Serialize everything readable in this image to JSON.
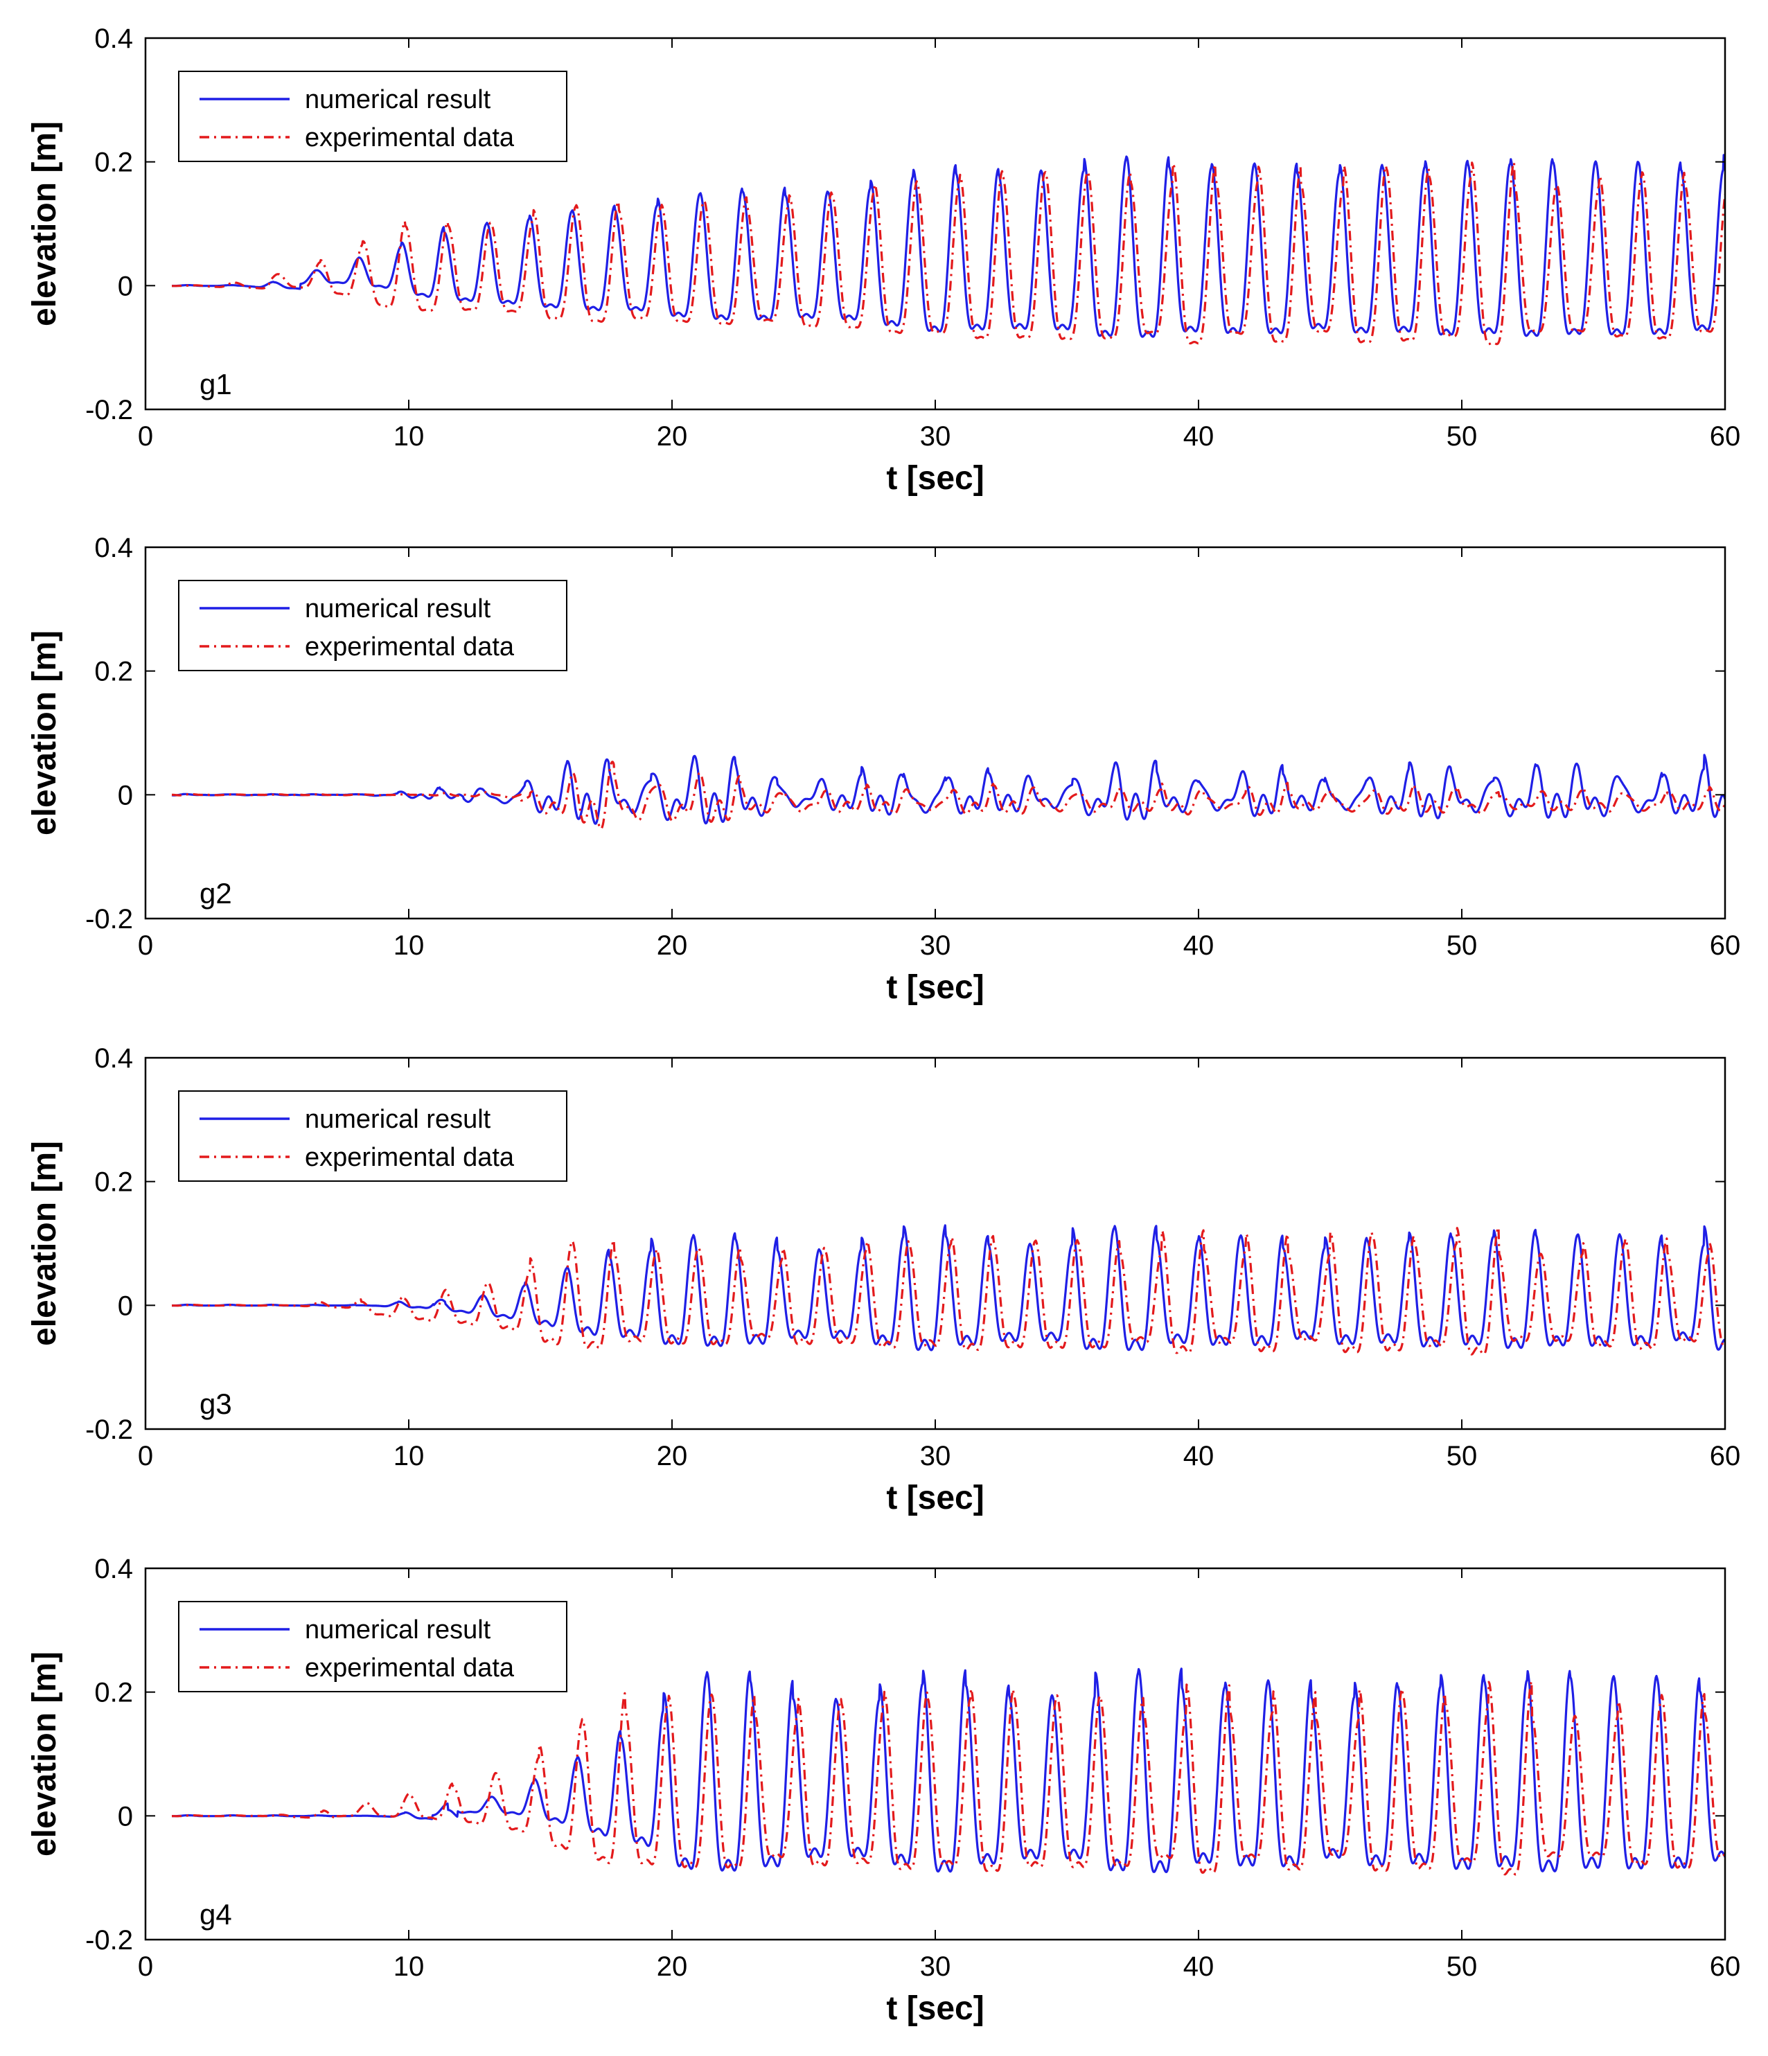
{
  "chart_data": [
    {
      "type": "line",
      "panel_label": "g1",
      "xlabel": "t [sec]",
      "ylabel": "elevation [m]",
      "xlim": [
        0,
        60
      ],
      "ylim": [
        -0.2,
        0.4
      ],
      "xticks": [
        0,
        10,
        20,
        30,
        40,
        50,
        60
      ],
      "yticks": [
        -0.2,
        0,
        0.2,
        0.4
      ],
      "xtick_labels": [
        "0",
        "10",
        "20",
        "30",
        "40",
        "50",
        "60"
      ],
      "ytick_labels": [
        "-0.2",
        "0",
        "0.2",
        "0.4"
      ],
      "legend_position": "top-left",
      "series": [
        {
          "name": "numerical result",
          "color": "#1f1fe6",
          "style": "solid",
          "data_start": 1.0,
          "data_end": 60.0,
          "onset": 3.5,
          "ramp": 1.0,
          "t1": 12.0,
          "amp1": 0.085,
          "t2": 34.0,
          "amp2": 0.18,
          "amp3": 0.18,
          "period": 1.62,
          "phase": 0.0,
          "offset": 0.035,
          "skew": 0.35,
          "noise": 0.15
        },
        {
          "name": "experimental data",
          "color": "#e31a1c",
          "style": "dashdot",
          "data_start": 1.0,
          "data_end": 60.0,
          "onset": 1.5,
          "ramp": 2.0,
          "t1": 10.0,
          "amp1": 0.09,
          "t2": 34.0,
          "amp2": 0.17,
          "amp3": 0.17,
          "period": 1.62,
          "phase": 0.15,
          "offset": 0.02,
          "skew": 0.3,
          "noise": 0.2
        }
      ]
    },
    {
      "type": "line",
      "panel_label": "g2",
      "xlabel": "t [sec]",
      "ylabel": "elevation [m]",
      "xlim": [
        0,
        60
      ],
      "ylim": [
        -0.2,
        0.4
      ],
      "xticks": [
        0,
        10,
        20,
        30,
        40,
        50,
        60
      ],
      "yticks": [
        -0.2,
        0,
        0.2,
        0.4
      ],
      "xtick_labels": [
        "0",
        "10",
        "20",
        "30",
        "40",
        "50",
        "60"
      ],
      "ytick_labels": [
        "-0.2",
        "0",
        "0.2",
        "0.4"
      ],
      "legend_position": "top-left",
      "series": [
        {
          "name": "numerical result",
          "color": "#1f1fe6",
          "style": "solid",
          "data_start": 1.0,
          "data_end": 60.0,
          "onset": 7.0,
          "ramp": 2.0,
          "t1": 17.0,
          "amp1": 0.05,
          "t2": 25.0,
          "amp2": 0.035,
          "amp3": 0.04,
          "period": 1.6,
          "phase": 0.0,
          "offset": -0.005,
          "skew": 0.6,
          "noise": 0.5
        },
        {
          "name": "experimental data",
          "color": "#e31a1c",
          "style": "dashdot",
          "data_start": 1.0,
          "data_end": 60.0,
          "onset": 10.0,
          "ramp": 2.0,
          "t1": 18.0,
          "amp1": 0.05,
          "t2": 26.0,
          "amp2": 0.02,
          "amp3": 0.02,
          "period": 1.6,
          "phase": 0.2,
          "offset": -0.025,
          "skew": 0.6,
          "noise": 0.5
        }
      ]
    },
    {
      "type": "line",
      "panel_label": "g3",
      "xlabel": "t [sec]",
      "ylabel": "elevation [m]",
      "xlim": [
        0,
        60
      ],
      "ylim": [
        -0.2,
        0.4
      ],
      "xticks": [
        0,
        10,
        20,
        30,
        40,
        50,
        60
      ],
      "yticks": [
        -0.2,
        0,
        0.2,
        0.4
      ],
      "xtick_labels": [
        "0",
        "10",
        "20",
        "30",
        "40",
        "50",
        "60"
      ],
      "ytick_labels": [
        "-0.2",
        "0",
        "0.2",
        "0.4"
      ],
      "legend_position": "top-left",
      "series": [
        {
          "name": "numerical result",
          "color": "#1f1fe6",
          "style": "solid",
          "data_start": 1.0,
          "data_end": 60.0,
          "onset": 8.0,
          "ramp": 2.0,
          "t1": 18.0,
          "amp1": 0.1,
          "t2": 31.0,
          "amp2": 0.12,
          "amp3": 0.115,
          "period": 1.6,
          "phase": 0.0,
          "offset": -0.01,
          "skew": 0.45,
          "noise": 0.3
        },
        {
          "name": "experimental data",
          "color": "#e31a1c",
          "style": "dashdot",
          "data_start": 1.0,
          "data_end": 60.0,
          "onset": 5.0,
          "ramp": 2.0,
          "t1": 16.0,
          "amp1": 0.1,
          "t2": 31.0,
          "amp2": 0.11,
          "amp3": 0.115,
          "period": 1.6,
          "phase": 0.2,
          "offset": -0.02,
          "skew": 0.4,
          "noise": 0.35
        }
      ]
    },
    {
      "type": "line",
      "panel_label": "g4",
      "xlabel": "t [sec]",
      "ylabel": "elevation [m]",
      "xlim": [
        0,
        60
      ],
      "ylim": [
        -0.2,
        0.4
      ],
      "xticks": [
        0,
        10,
        20,
        30,
        40,
        50,
        60
      ],
      "yticks": [
        -0.2,
        0,
        0.2,
        0.4
      ],
      "xtick_labels": [
        "0",
        "10",
        "20",
        "30",
        "40",
        "50",
        "60"
      ],
      "ytick_labels": [
        "-0.2",
        "0",
        "0.2",
        "0.4"
      ],
      "legend_position": "top-left",
      "series": [
        {
          "name": "numerical result",
          "color": "#1f1fe6",
          "style": "solid",
          "data_start": 1.0,
          "data_end": 60.0,
          "onset": 8.0,
          "ramp": 4.0,
          "t1": 20.5,
          "amp1": 0.19,
          "t2": 45.0,
          "amp2": 0.2,
          "amp3": 0.2,
          "period": 1.64,
          "phase": 0.0,
          "offset": 0.04,
          "skew": 0.4,
          "noise": 0.25
        },
        {
          "name": "experimental data",
          "color": "#e31a1c",
          "style": "dashdot",
          "data_start": 1.0,
          "data_end": 60.0,
          "onset": 4.0,
          "ramp": 4.0,
          "t1": 19.0,
          "amp1": 0.185,
          "t2": 45.0,
          "amp2": 0.17,
          "amp3": 0.18,
          "period": 1.64,
          "phase": 0.18,
          "offset": 0.025,
          "skew": 0.35,
          "noise": 0.3
        }
      ]
    }
  ]
}
